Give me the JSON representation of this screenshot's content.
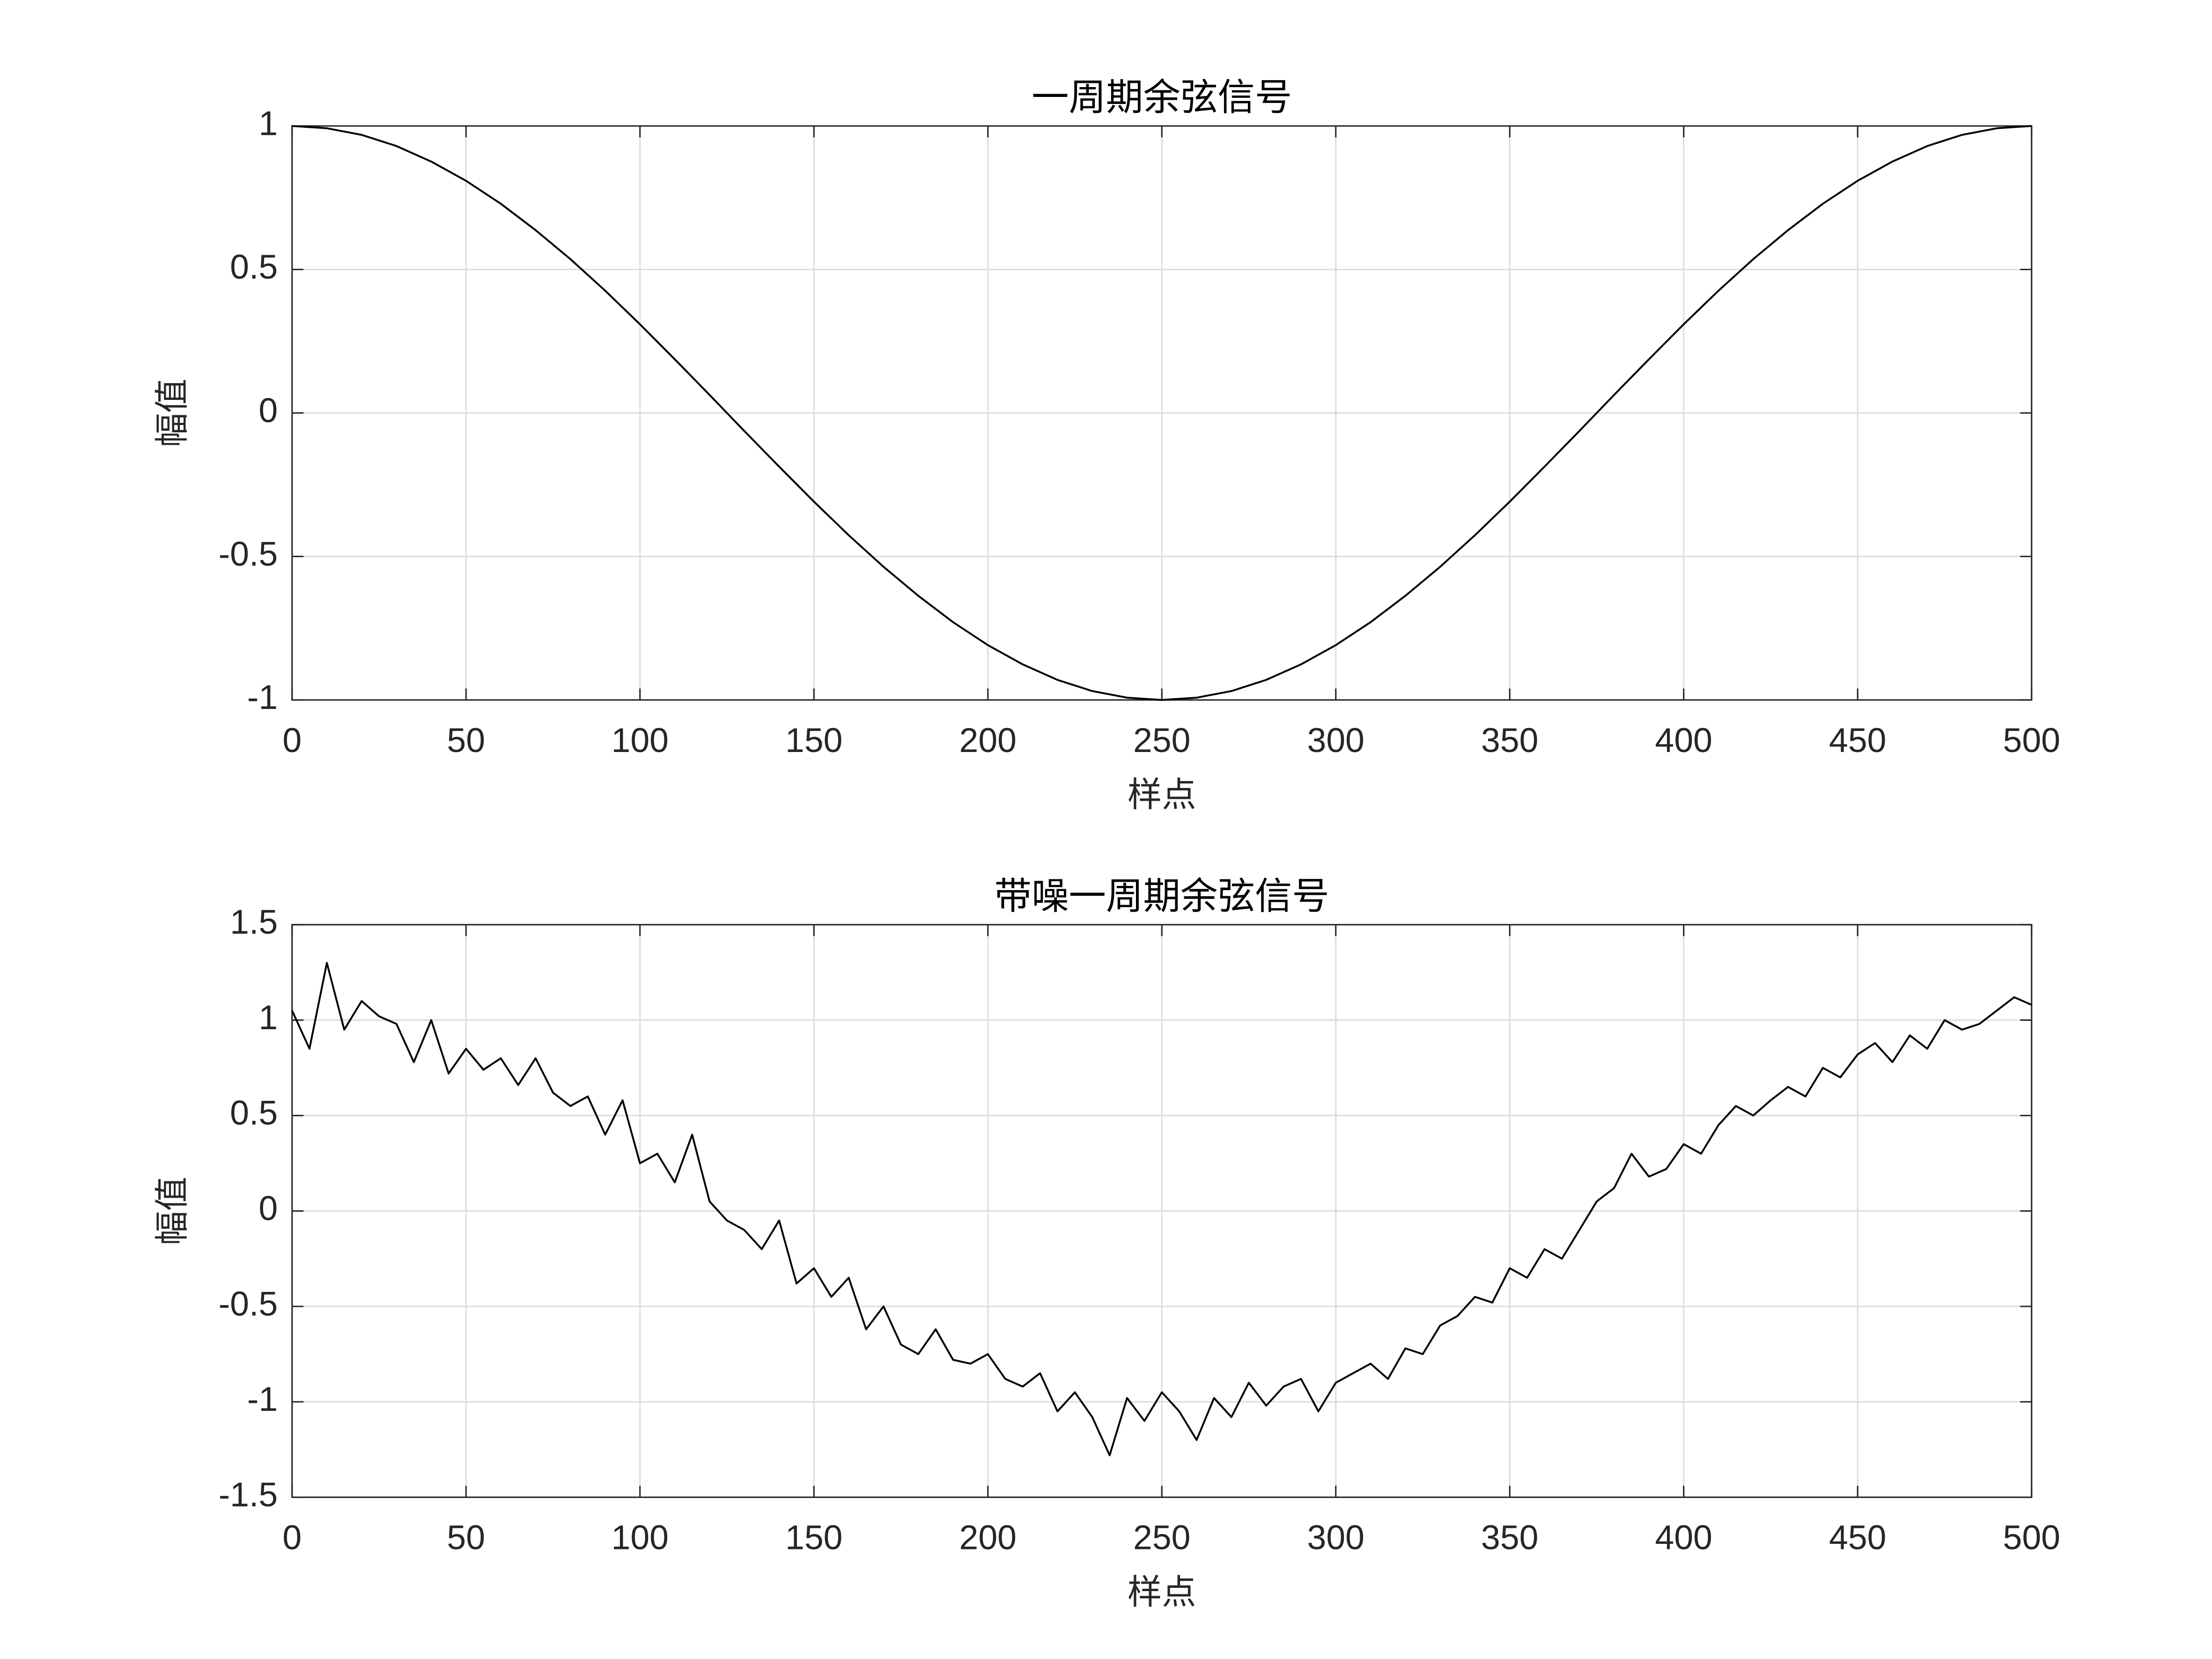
{
  "chart_data": [
    {
      "type": "line",
      "title": "一周期余弦信号",
      "x_label": "样点",
      "y_label": "幅值",
      "xlim": [
        0,
        500
      ],
      "ylim": [
        -1,
        1
      ],
      "xticks": [
        0,
        50,
        100,
        150,
        200,
        250,
        300,
        350,
        400,
        450,
        500
      ],
      "yticks": [
        -1,
        -0.5,
        0,
        0.5,
        1
      ],
      "grid": true,
      "x": [
        0,
        10,
        20,
        30,
        40,
        50,
        60,
        70,
        80,
        90,
        100,
        110,
        120,
        130,
        140,
        150,
        160,
        170,
        180,
        190,
        200,
        210,
        220,
        230,
        240,
        250,
        260,
        270,
        280,
        290,
        300,
        310,
        320,
        330,
        340,
        350,
        360,
        370,
        380,
        390,
        400,
        410,
        420,
        430,
        440,
        450,
        460,
        470,
        480,
        490,
        500
      ],
      "series": [
        {
          "color": "#000000",
          "values": [
            1,
            0.992,
            0.969,
            0.93,
            0.876,
            0.809,
            0.729,
            0.637,
            0.536,
            0.426,
            0.309,
            0.187,
            0.063,
            -0.063,
            -0.187,
            -0.309,
            -0.426,
            -0.536,
            -0.637,
            -0.729,
            -0.809,
            -0.876,
            -0.93,
            -0.969,
            -0.992,
            -1,
            -0.992,
            -0.969,
            -0.93,
            -0.876,
            -0.809,
            -0.729,
            -0.637,
            -0.536,
            -0.426,
            -0.309,
            -0.187,
            -0.063,
            0.063,
            0.187,
            0.309,
            0.426,
            0.536,
            0.637,
            0.729,
            0.809,
            0.876,
            0.93,
            0.969,
            0.992,
            1
          ]
        }
      ]
    },
    {
      "type": "line",
      "title": "带噪一周期余弦信号",
      "x_label": "样点",
      "y_label": "幅值",
      "xlim": [
        0,
        500
      ],
      "ylim": [
        -1.5,
        1.5
      ],
      "xticks": [
        0,
        50,
        100,
        150,
        200,
        250,
        300,
        350,
        400,
        450,
        500
      ],
      "yticks": [
        -1.5,
        -1,
        -0.5,
        0,
        0.5,
        1,
        1.5
      ],
      "grid": true,
      "x": [
        0,
        5,
        10,
        15,
        20,
        25,
        30,
        35,
        40,
        45,
        50,
        55,
        60,
        65,
        70,
        75,
        80,
        85,
        90,
        95,
        100,
        105,
        110,
        115,
        120,
        125,
        130,
        135,
        140,
        145,
        150,
        155,
        160,
        165,
        170,
        175,
        180,
        185,
        190,
        195,
        200,
        205,
        210,
        215,
        220,
        225,
        230,
        235,
        240,
        245,
        250,
        255,
        260,
        265,
        270,
        275,
        280,
        285,
        290,
        295,
        300,
        305,
        310,
        315,
        320,
        325,
        330,
        335,
        340,
        345,
        350,
        355,
        360,
        365,
        370,
        375,
        380,
        385,
        390,
        395,
        400,
        405,
        410,
        415,
        420,
        425,
        430,
        435,
        440,
        445,
        450,
        455,
        460,
        465,
        470,
        475,
        480,
        485,
        490,
        495,
        500
      ],
      "series": [
        {
          "color": "#000000",
          "values": [
            1.05,
            0.85,
            1.3,
            0.95,
            1.1,
            1.02,
            0.98,
            0.78,
            1.0,
            0.72,
            0.85,
            0.74,
            0.8,
            0.66,
            0.8,
            0.62,
            0.55,
            0.6,
            0.4,
            0.58,
            0.25,
            0.3,
            0.15,
            0.4,
            0.05,
            -0.05,
            -0.1,
            -0.2,
            -0.05,
            -0.38,
            -0.3,
            -0.45,
            -0.35,
            -0.62,
            -0.5,
            -0.7,
            -0.75,
            -0.62,
            -0.78,
            -0.8,
            -0.75,
            -0.88,
            -0.92,
            -0.85,
            -1.05,
            -0.95,
            -1.08,
            -1.28,
            -0.98,
            -1.1,
            -0.95,
            -1.05,
            -1.2,
            -0.98,
            -1.08,
            -0.9,
            -1.02,
            -0.92,
            -0.88,
            -1.05,
            -0.9,
            -0.85,
            -0.8,
            -0.88,
            -0.72,
            -0.75,
            -0.6,
            -0.55,
            -0.45,
            -0.48,
            -0.3,
            -0.35,
            -0.2,
            -0.25,
            -0.1,
            0.05,
            0.12,
            0.3,
            0.18,
            0.22,
            0.35,
            0.3,
            0.45,
            0.55,
            0.5,
            0.58,
            0.65,
            0.6,
            0.75,
            0.7,
            0.82,
            0.88,
            0.78,
            0.92,
            0.85,
            1.0,
            0.95,
            0.98,
            1.05,
            1.12,
            1.08
          ]
        }
      ]
    }
  ]
}
